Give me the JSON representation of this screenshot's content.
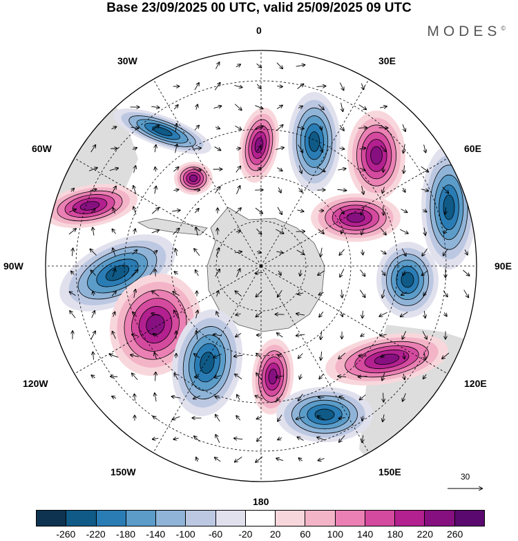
{
  "title": "Base 23/09/2025 00 UTC, valid 25/09/2025 09 UTC",
  "brand": "MODES",
  "brand_mark": "©",
  "lon_labels": {
    "l0": "0",
    "l30e": "30E",
    "l60e": "60E",
    "l90e": "90E",
    "l120e": "120E",
    "l150e": "150E",
    "l180": "180",
    "l150w": "150W",
    "l120w": "120W",
    "l90w": "90W",
    "l60w": "60W",
    "l30w": "30W"
  },
  "reference_vector": {
    "label": "30"
  },
  "colorbar": {
    "ticks": [
      "-260",
      "-220",
      "-180",
      "-140",
      "-100",
      "-60",
      "-20",
      "20",
      "60",
      "100",
      "140",
      "180",
      "220",
      "260"
    ],
    "colors": [
      "#0d3350",
      "#0f5a86",
      "#2a7cb4",
      "#5b9cc9",
      "#8fb4d8",
      "#bcc8e2",
      "#e1e1ee",
      "#ffffff",
      "#f8d7dc",
      "#f3b4c8",
      "#ea80b3",
      "#d44a9e",
      "#b3208f",
      "#86107f",
      "#5a0a6e"
    ]
  },
  "colors": {
    "land": "#dddddd",
    "grid": "#000000",
    "neg_strong": "#0f5a86",
    "pos_strong": "#b3208f"
  }
}
